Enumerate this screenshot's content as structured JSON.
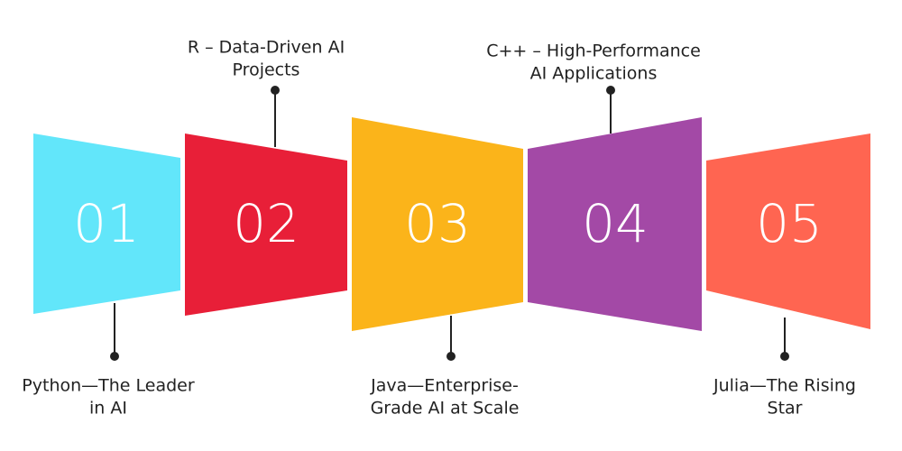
{
  "steps": [
    {
      "number": "01",
      "label": [
        "Python—The Leader",
        "in AI"
      ]
    },
    {
      "number": "02",
      "label": [
        "R – Data-Driven AI",
        "Projects"
      ]
    },
    {
      "number": "03",
      "label": [
        "Java—Enterprise-",
        "Grade AI at Scale"
      ]
    },
    {
      "number": "04",
      "label": [
        "C++ – High-Performance",
        "AI Applications"
      ]
    },
    {
      "number": "05",
      "label": [
        "Julia—The Rising",
        "Star"
      ]
    }
  ]
}
